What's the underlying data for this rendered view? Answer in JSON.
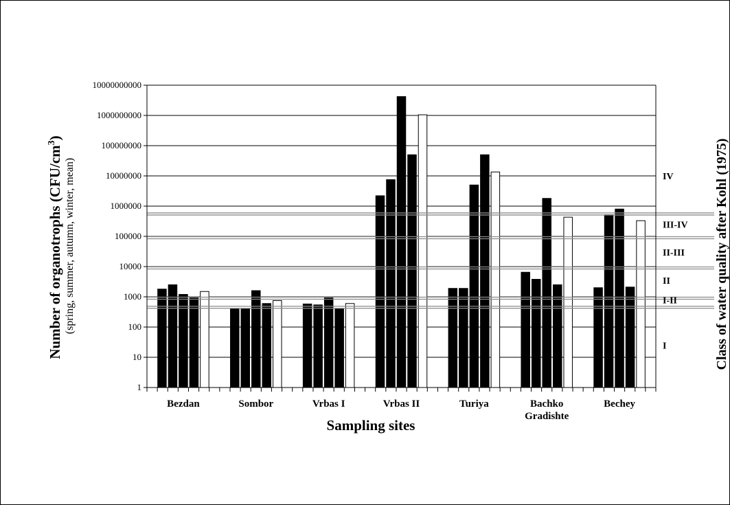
{
  "chart_data": {
    "type": "bar",
    "scale": "log",
    "ylim": [
      1,
      10000000000
    ],
    "y_ticks": [
      "1",
      "10",
      "100",
      "1000",
      "10000",
      "100000",
      "1000000",
      "10000000",
      "100000000",
      "1000000000",
      "10000000000"
    ],
    "categories": [
      {
        "line1": "Bezdan",
        "line2": ""
      },
      {
        "line1": "Sombor",
        "line2": ""
      },
      {
        "line1": "Vrbas I",
        "line2": ""
      },
      {
        "line1": "Vrbas II",
        "line2": ""
      },
      {
        "line1": "Turiya",
        "line2": ""
      },
      {
        "line1": "Bachko",
        "line2": "Gradishte"
      },
      {
        "line1": "Bechey",
        "line2": ""
      }
    ],
    "series": [
      {
        "name": "spring",
        "color": "#000000",
        "values": [
          1800,
          400,
          580,
          2200000,
          1900,
          6500,
          2000
        ]
      },
      {
        "name": "summer",
        "color": "#000000",
        "values": [
          2500,
          400,
          540,
          7500000,
          1900,
          3800,
          520000
        ]
      },
      {
        "name": "autumn",
        "color": "#000000",
        "values": [
          1200,
          1600,
          1000,
          4200000000,
          5000000,
          1800000,
          800000
        ]
      },
      {
        "name": "winter",
        "color": "#000000",
        "values": [
          1000,
          600,
          400,
          50000000,
          50000000,
          2500,
          2100
        ]
      },
      {
        "name": "mean",
        "color": "#ffffff",
        "values": [
          1500,
          750,
          600,
          1050000000,
          13500000,
          430000,
          330000
        ]
      }
    ],
    "xlabel": "Sampling sites",
    "ylabel_main": "Number of organotrophs (CFU/cm",
    "ylabel_sup": "3",
    "ylabel_close": ")",
    "ylabel_sub": "(spring, summer, autumn, winter, mean)",
    "right_axis_label": "Class  of water quality  after Kohl (1975)",
    "class_boundaries": [
      450,
      900,
      9000,
      90000,
      550000
    ],
    "class_labels": [
      {
        "label": "IV",
        "value": 10000000
      },
      {
        "label": "III-IV",
        "value": 250000
      },
      {
        "label": "II-III",
        "value": 30000
      },
      {
        "label": "II",
        "value": 3500
      },
      {
        "label": "I-II",
        "value": 800
      },
      {
        "label": "I",
        "value": 25
      }
    ],
    "grid": true,
    "legend": "none"
  }
}
